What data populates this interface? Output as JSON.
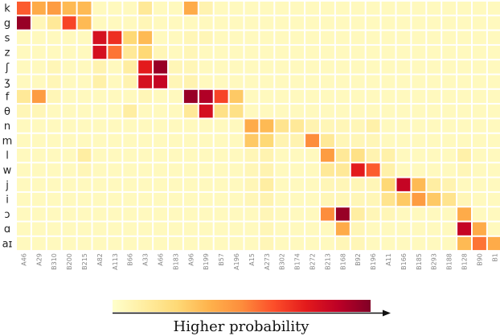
{
  "chart_data": {
    "type": "heatmap",
    "rows": [
      "k",
      "g",
      "s",
      "z",
      "ʃ",
      "ʒ",
      "f",
      "θ",
      "n",
      "m",
      "l",
      "w",
      "j",
      "i",
      "ɔ",
      "ɑ",
      "aɪ"
    ],
    "columns": [
      "A46",
      "A29",
      "B310",
      "B200",
      "B215",
      "A82",
      "A113",
      "B66",
      "A33",
      "A66",
      "B183",
      "A96",
      "B199",
      "B57",
      "A196",
      "A15",
      "A273",
      "B302",
      "B174",
      "B272",
      "B213",
      "B168",
      "B92",
      "B196",
      "A11",
      "B166",
      "B185",
      "B293",
      "B188",
      "B128",
      "B90",
      "B1"
    ],
    "values": [
      [
        0.6,
        0.4,
        0.45,
        0.35,
        0.35,
        0.04,
        0.04,
        0.04,
        0.15,
        0.04,
        0.04,
        0.4,
        0.08,
        0.04,
        0.04,
        0.04,
        0.04,
        0.04,
        0.04,
        0.04,
        0.04,
        0.04,
        0.04,
        0.04,
        0.04,
        0.04,
        0.04,
        0.04,
        0.04,
        0.04,
        0.04,
        0.04
      ],
      [
        0.95,
        0.06,
        0.15,
        0.65,
        0.35,
        0.04,
        0.04,
        0.04,
        0.06,
        0.04,
        0.04,
        0.04,
        0.04,
        0.04,
        0.04,
        0.04,
        0.04,
        0.04,
        0.04,
        0.04,
        0.04,
        0.04,
        0.04,
        0.04,
        0.04,
        0.04,
        0.04,
        0.04,
        0.04,
        0.04,
        0.04,
        0.04
      ],
      [
        0.04,
        0.04,
        0.04,
        0.04,
        0.04,
        0.8,
        0.7,
        0.25,
        0.35,
        0.04,
        0.04,
        0.06,
        0.06,
        0.04,
        0.04,
        0.04,
        0.04,
        0.04,
        0.04,
        0.04,
        0.04,
        0.04,
        0.04,
        0.04,
        0.04,
        0.04,
        0.04,
        0.04,
        0.04,
        0.04,
        0.04,
        0.04
      ],
      [
        0.04,
        0.04,
        0.04,
        0.04,
        0.04,
        0.8,
        0.55,
        0.15,
        0.25,
        0.06,
        0.04,
        0.06,
        0.04,
        0.04,
        0.04,
        0.04,
        0.04,
        0.04,
        0.04,
        0.04,
        0.04,
        0.04,
        0.04,
        0.04,
        0.04,
        0.04,
        0.04,
        0.04,
        0.04,
        0.04,
        0.04,
        0.04
      ],
      [
        0.04,
        0.04,
        0.06,
        0.04,
        0.04,
        0.08,
        0.04,
        0.12,
        0.75,
        0.95,
        0.06,
        0.06,
        0.04,
        0.04,
        0.04,
        0.04,
        0.04,
        0.04,
        0.04,
        0.04,
        0.04,
        0.04,
        0.04,
        0.04,
        0.04,
        0.04,
        0.04,
        0.04,
        0.04,
        0.04,
        0.04,
        0.04
      ],
      [
        0.04,
        0.04,
        0.06,
        0.04,
        0.04,
        0.1,
        0.04,
        0.08,
        0.8,
        0.85,
        0.06,
        0.08,
        0.04,
        0.04,
        0.04,
        0.04,
        0.04,
        0.04,
        0.04,
        0.04,
        0.04,
        0.04,
        0.04,
        0.04,
        0.04,
        0.04,
        0.04,
        0.04,
        0.04,
        0.04,
        0.04,
        0.04
      ],
      [
        0.15,
        0.45,
        0.06,
        0.04,
        0.04,
        0.04,
        0.04,
        0.04,
        0.06,
        0.04,
        0.04,
        0.95,
        0.9,
        0.65,
        0.3,
        0.04,
        0.04,
        0.04,
        0.04,
        0.04,
        0.04,
        0.04,
        0.04,
        0.04,
        0.04,
        0.04,
        0.04,
        0.04,
        0.04,
        0.04,
        0.04,
        0.04
      ],
      [
        0.06,
        0.06,
        0.04,
        0.04,
        0.04,
        0.04,
        0.04,
        0.12,
        0.04,
        0.04,
        0.04,
        0.15,
        0.8,
        0.2,
        0.2,
        0.04,
        0.04,
        0.04,
        0.04,
        0.04,
        0.04,
        0.04,
        0.04,
        0.04,
        0.04,
        0.04,
        0.04,
        0.04,
        0.04,
        0.04,
        0.04,
        0.04
      ],
      [
        0.04,
        0.04,
        0.04,
        0.04,
        0.04,
        0.04,
        0.04,
        0.04,
        0.04,
        0.04,
        0.04,
        0.04,
        0.04,
        0.04,
        0.04,
        0.4,
        0.35,
        0.18,
        0.15,
        0.08,
        0.06,
        0.06,
        0.06,
        0.1,
        0.04,
        0.04,
        0.04,
        0.04,
        0.04,
        0.04,
        0.04,
        0.04
      ],
      [
        0.04,
        0.04,
        0.04,
        0.04,
        0.04,
        0.04,
        0.04,
        0.04,
        0.04,
        0.04,
        0.04,
        0.04,
        0.04,
        0.04,
        0.04,
        0.3,
        0.25,
        0.08,
        0.08,
        0.5,
        0.15,
        0.06,
        0.06,
        0.06,
        0.04,
        0.04,
        0.04,
        0.04,
        0.04,
        0.04,
        0.04,
        0.04
      ],
      [
        0.04,
        0.04,
        0.04,
        0.04,
        0.12,
        0.04,
        0.04,
        0.04,
        0.04,
        0.04,
        0.04,
        0.04,
        0.04,
        0.04,
        0.04,
        0.06,
        0.08,
        0.04,
        0.04,
        0.04,
        0.45,
        0.15,
        0.2,
        0.08,
        0.1,
        0.04,
        0.04,
        0.04,
        0.04,
        0.1,
        0.04,
        0.04
      ],
      [
        0.04,
        0.04,
        0.04,
        0.04,
        0.06,
        0.04,
        0.04,
        0.04,
        0.04,
        0.04,
        0.04,
        0.04,
        0.04,
        0.04,
        0.04,
        0.06,
        0.08,
        0.04,
        0.04,
        0.04,
        0.15,
        0.15,
        0.75,
        0.6,
        0.1,
        0.04,
        0.04,
        0.04,
        0.04,
        0.06,
        0.04,
        0.04
      ],
      [
        0.04,
        0.04,
        0.04,
        0.04,
        0.04,
        0.04,
        0.04,
        0.04,
        0.04,
        0.04,
        0.04,
        0.04,
        0.04,
        0.04,
        0.04,
        0.06,
        0.12,
        0.04,
        0.04,
        0.04,
        0.06,
        0.06,
        0.06,
        0.06,
        0.25,
        0.85,
        0.35,
        0.12,
        0.08,
        0.04,
        0.04,
        0.04
      ],
      [
        0.04,
        0.04,
        0.04,
        0.04,
        0.04,
        0.04,
        0.04,
        0.04,
        0.04,
        0.04,
        0.04,
        0.04,
        0.04,
        0.04,
        0.04,
        0.06,
        0.08,
        0.04,
        0.04,
        0.04,
        0.06,
        0.06,
        0.06,
        0.06,
        0.18,
        0.3,
        0.45,
        0.3,
        0.18,
        0.06,
        0.04,
        0.04
      ],
      [
        0.04,
        0.04,
        0.04,
        0.04,
        0.04,
        0.04,
        0.04,
        0.04,
        0.04,
        0.04,
        0.04,
        0.04,
        0.04,
        0.04,
        0.04,
        0.04,
        0.06,
        0.04,
        0.04,
        0.04,
        0.5,
        0.95,
        0.12,
        0.06,
        0.06,
        0.04,
        0.04,
        0.04,
        0.04,
        0.4,
        0.04,
        0.04
      ],
      [
        0.04,
        0.04,
        0.04,
        0.04,
        0.04,
        0.04,
        0.04,
        0.04,
        0.04,
        0.04,
        0.04,
        0.04,
        0.04,
        0.04,
        0.04,
        0.04,
        0.06,
        0.04,
        0.04,
        0.04,
        0.04,
        0.4,
        0.06,
        0.04,
        0.04,
        0.04,
        0.04,
        0.04,
        0.04,
        0.85,
        0.4,
        0.04
      ],
      [
        0.04,
        0.04,
        0.04,
        0.04,
        0.04,
        0.04,
        0.04,
        0.04,
        0.04,
        0.04,
        0.04,
        0.04,
        0.04,
        0.04,
        0.04,
        0.04,
        0.06,
        0.04,
        0.04,
        0.04,
        0.04,
        0.06,
        0.06,
        0.04,
        0.04,
        0.04,
        0.04,
        0.04,
        0.04,
        0.35,
        0.55,
        0.4
      ]
    ],
    "colormap": [
      "#ffffcc",
      "#ffeda0",
      "#fed976",
      "#feb24c",
      "#fd8d3c",
      "#fc4e2a",
      "#e31a1c",
      "#bd0026",
      "#800026"
    ],
    "colorbar": {
      "label": "Higher probability"
    },
    "legend": "bottom"
  }
}
